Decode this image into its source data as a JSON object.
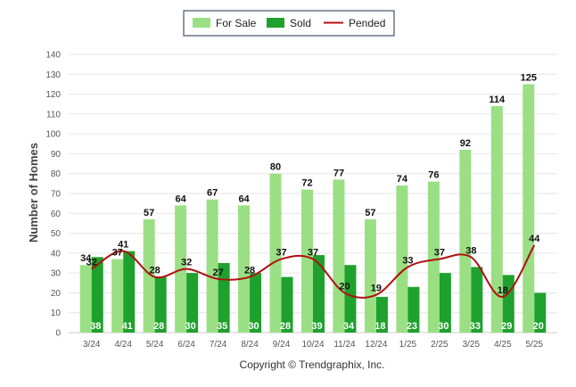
{
  "chart_data": {
    "type": "bar",
    "categories": [
      "3/24",
      "4/24",
      "5/24",
      "6/24",
      "7/24",
      "8/24",
      "9/24",
      "10/24",
      "11/24",
      "12/24",
      "1/25",
      "2/25",
      "3/25",
      "4/25",
      "5/25"
    ],
    "series": [
      {
        "name": "For Sale",
        "kind": "bar",
        "color": "#9bdf84",
        "values": [
          34,
          37,
          57,
          64,
          67,
          64,
          80,
          72,
          77,
          57,
          74,
          76,
          92,
          114,
          125
        ]
      },
      {
        "name": "Sold",
        "kind": "bar",
        "color": "#1fa12d",
        "values": [
          38,
          41,
          28,
          30,
          35,
          30,
          28,
          39,
          34,
          18,
          23,
          30,
          33,
          29,
          20
        ]
      },
      {
        "name": "Pended",
        "kind": "line",
        "color": "#b01010",
        "values": [
          32,
          41,
          28,
          32,
          27,
          28,
          37,
          37,
          20,
          19,
          33,
          37,
          38,
          18,
          44
        ]
      }
    ],
    "ylabel": "Number of Homes",
    "xlabel": "",
    "ylim": [
      0,
      140
    ],
    "yticks": [
      0,
      10,
      20,
      30,
      40,
      50,
      60,
      70,
      80,
      90,
      100,
      110,
      120,
      130,
      140
    ],
    "grid": true,
    "legend_position": "top-center",
    "credit": "Copyright © Trendgraphix, Inc."
  }
}
